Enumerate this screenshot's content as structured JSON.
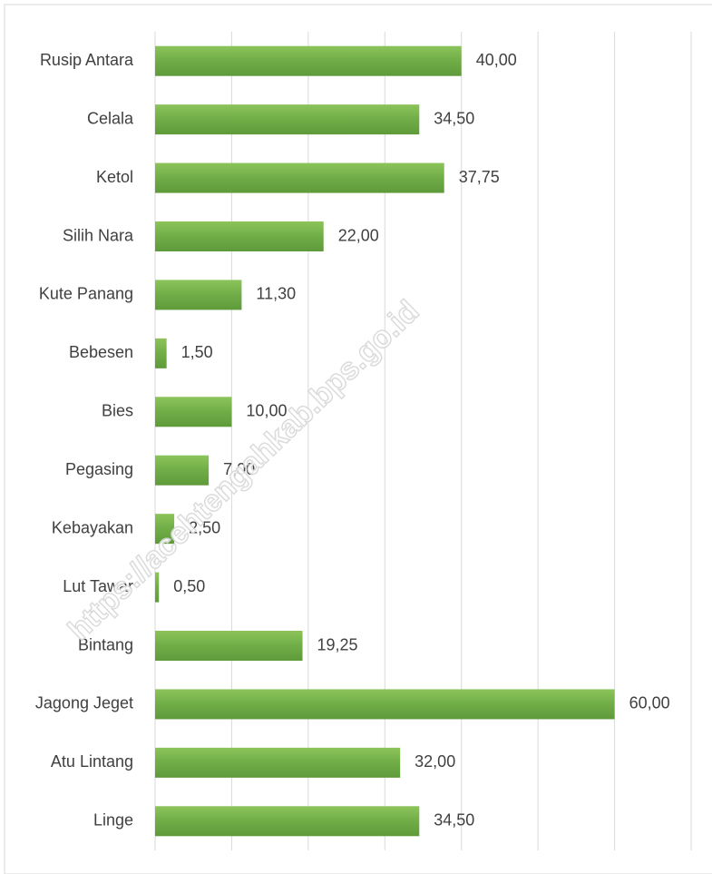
{
  "chart_data": {
    "type": "bar",
    "orientation": "horizontal",
    "categories": [
      "Rusip Antara",
      "Celala",
      "Ketol",
      "Silih Nara",
      "Kute Panang",
      "Bebesen",
      "Bies",
      "Pegasing",
      "Kebayakan",
      "Lut Tawar",
      "Bintang",
      "Jagong Jeget",
      "Atu Lintang",
      "Linge"
    ],
    "values": [
      40,
      34.5,
      37.75,
      22,
      11.3,
      1.5,
      10,
      7,
      2.5,
      0.5,
      19.25,
      60,
      32,
      34.5
    ],
    "value_labels": [
      "40,00",
      "34,50",
      "37,75",
      "22,00",
      "11,30",
      "1,50",
      "10,00",
      "7,00",
      "2,50",
      "0,50",
      "19,25",
      "60,00",
      "32,00",
      "34,50"
    ],
    "color": "#70ad47",
    "xlim": [
      0,
      70
    ],
    "xticks": [
      0,
      10,
      20,
      30,
      40,
      50,
      60,
      70
    ],
    "grid": true,
    "watermark": "https://acehtengahkab.bps.go.id"
  }
}
